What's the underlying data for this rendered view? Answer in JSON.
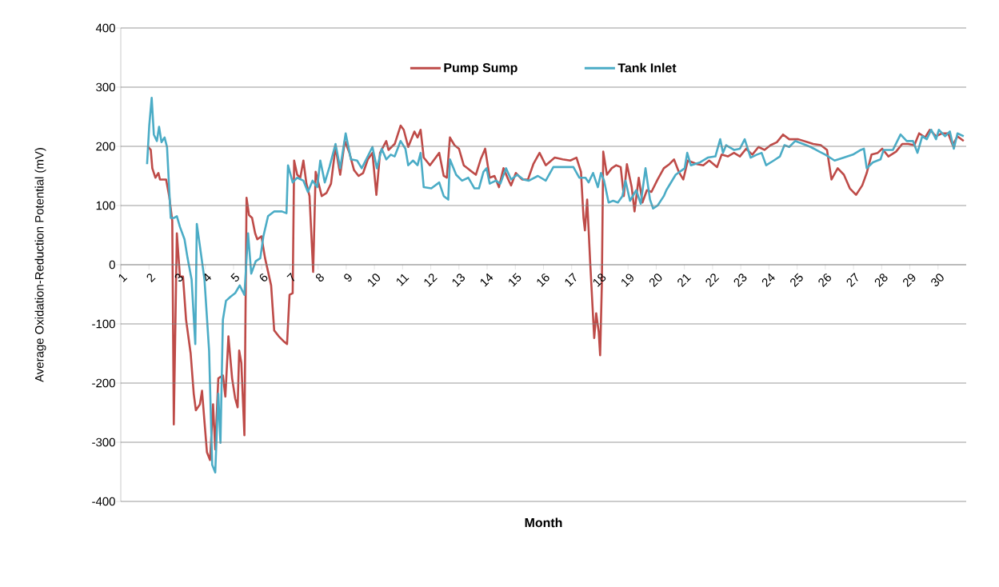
{
  "chart_data": {
    "type": "line",
    "xlabel": "Month",
    "ylabel": "Average Oxidation-Reduction Potential (mV)",
    "xlim": [
      1,
      31
    ],
    "xticks": [
      1,
      2,
      3,
      4,
      5,
      6,
      7,
      8,
      9,
      10,
      11,
      12,
      13,
      14,
      15,
      16,
      17,
      18,
      19,
      20,
      21,
      22,
      23,
      24,
      25,
      26,
      27,
      28,
      29,
      30
    ],
    "ylim": [
      -400,
      400
    ],
    "yticks": [
      -400,
      -300,
      -200,
      -100,
      0,
      100,
      200,
      300,
      400
    ],
    "grid": "y",
    "legend": "top",
    "marker": "none",
    "line_style": "solid",
    "series": [
      {
        "name": "Pump Sump",
        "color": "#be4b48",
        "x": [
          1.955,
          2.064,
          2.119,
          2.228,
          2.336,
          2.391,
          2.609,
          2.718,
          2.827,
          2.881,
          2.99,
          3.099,
          3.208,
          3.317,
          3.48,
          3.589,
          3.665,
          3.807,
          3.883,
          3.97,
          4.058,
          4.167,
          4.275,
          4.352,
          4.461,
          4.624,
          4.711,
          4.82,
          4.951,
          5.06,
          5.147,
          5.201,
          5.278,
          5.387,
          5.463,
          5.55,
          5.659,
          5.768,
          5.845,
          5.99,
          6.12,
          6.335,
          6.444,
          6.607,
          6.77,
          6.9,
          6.988,
          7.1,
          7.152,
          7.26,
          7.37,
          7.48,
          7.587,
          7.697,
          7.827,
          7.915,
          8.02,
          8.13,
          8.296,
          8.46,
          8.62,
          8.786,
          8.95,
          9.113,
          9.276,
          9.44,
          9.6,
          9.766,
          9.93,
          10.07,
          10.2,
          10.42,
          10.5,
          10.72,
          10.93,
          11.04,
          11.2,
          11.42,
          11.53,
          11.64,
          11.75,
          11.97,
          12.3,
          12.46,
          12.57,
          12.68,
          12.84,
          13.0,
          13.17,
          13.38,
          13.6,
          13.77,
          13.93,
          14.09,
          14.26,
          14.42,
          14.58,
          14.75,
          14.85,
          15.02,
          15.24,
          15.45,
          15.64,
          15.86,
          16.08,
          16.4,
          16.68,
          16.95,
          17.17,
          17.33,
          17.42,
          17.47,
          17.55,
          17.66,
          17.8,
          17.87,
          17.96,
          18.01,
          18.07,
          18.12,
          18.25,
          18.42,
          18.58,
          18.74,
          18.85,
          18.96,
          19.13,
          19.23,
          19.38,
          19.51,
          19.67,
          19.83,
          20.05,
          20.27,
          20.47,
          20.63,
          20.8,
          20.96,
          21.12,
          21.45,
          21.67,
          21.88,
          22.16,
          22.32,
          22.54,
          22.76,
          22.97,
          23.19,
          23.41,
          23.63,
          23.84,
          24.06,
          24.28,
          24.5,
          24.72,
          25.04,
          25.37,
          25.57,
          25.84,
          26.06,
          26.22,
          26.44,
          26.66,
          26.87,
          27.09,
          27.31,
          27.47,
          27.64,
          27.86,
          28.02,
          28.24,
          28.51,
          28.73,
          28.94,
          29.16,
          29.33,
          29.54,
          29.71,
          29.93,
          30.14,
          30.36,
          30.52,
          30.69,
          30.91
        ],
        "values": [
          200,
          194,
          163,
          147,
          155,
          144,
          144,
          116,
          74,
          -270,
          53,
          -20,
          -20,
          -93,
          -150,
          -218,
          -246,
          -236,
          -213,
          -265,
          -317,
          -330,
          -236,
          -312,
          -192,
          -187,
          -223,
          -121,
          -192,
          -226,
          -241,
          -145,
          -166,
          -288,
          113,
          84,
          79,
          53,
          43,
          48,
          11,
          -35,
          -111,
          -121,
          -129,
          -134,
          -51,
          -48,
          176,
          152,
          147,
          176,
          137,
          116,
          -12,
          157,
          137,
          116,
          121,
          137,
          199,
          152,
          209,
          189,
          160,
          150,
          155,
          178,
          189,
          118,
          189,
          209,
          194,
          204,
          235,
          228,
          199,
          225,
          215,
          228,
          181,
          168,
          189,
          150,
          147,
          215,
          202,
          196,
          168,
          160,
          152,
          178,
          196,
          147,
          150,
          131,
          163,
          144,
          134,
          155,
          144,
          144,
          170,
          189,
          168,
          181,
          178,
          176,
          181,
          157,
          79,
          58,
          110,
          1,
          -124,
          -82,
          -114,
          -153,
          -35,
          191,
          152,
          163,
          168,
          165,
          116,
          170,
          131,
          90,
          147,
          105,
          126,
          123,
          144,
          163,
          170,
          178,
          157,
          144,
          176,
          170,
          168,
          176,
          165,
          186,
          183,
          189,
          183,
          196,
          186,
          199,
          194,
          202,
          207,
          220,
          212,
          212,
          207,
          204,
          202,
          194,
          144,
          163,
          152,
          129,
          118,
          134,
          155,
          186,
          189,
          196,
          183,
          191,
          204,
          204,
          202,
          222,
          215,
          228,
          217,
          222,
          222,
          202,
          217,
          209
        ]
      },
      {
        "name": "Tank Inlet",
        "color": "#4bacc6",
        "x": [
          1.933,
          2.01,
          2.097,
          2.173,
          2.282,
          2.358,
          2.445,
          2.554,
          2.641,
          2.772,
          2.881,
          2.99,
          3.099,
          3.262,
          3.371,
          3.513,
          3.644,
          3.698,
          3.807,
          3.97,
          4.134,
          4.243,
          4.352,
          4.46,
          4.537,
          4.624,
          4.733,
          4.896,
          5.06,
          5.22,
          5.387,
          5.517,
          5.63,
          5.79,
          5.95,
          6.06,
          6.226,
          6.44,
          6.716,
          6.88,
          6.934,
          7.1,
          7.26,
          7.48,
          7.64,
          7.805,
          7.97,
          8.08,
          8.24,
          8.405,
          8.62,
          8.786,
          8.98,
          9.167,
          9.385,
          9.55,
          9.71,
          9.93,
          10.09,
          10.26,
          10.42,
          10.58,
          10.72,
          10.93,
          11.1,
          11.2,
          11.37,
          11.53,
          11.64,
          11.75,
          12.02,
          12.3,
          12.46,
          12.62,
          12.68,
          12.9,
          13.11,
          13.33,
          13.55,
          13.71,
          13.87,
          13.98,
          14.09,
          14.31,
          14.47,
          14.67,
          14.85,
          15.07,
          15.29,
          15.48,
          15.8,
          16.08,
          16.35,
          16.68,
          17.06,
          17.27,
          17.49,
          17.6,
          17.76,
          17.93,
          18.04,
          18.15,
          18.31,
          18.47,
          18.64,
          18.8,
          18.91,
          19.07,
          19.29,
          19.45,
          19.62,
          19.78,
          19.89,
          20.05,
          20.27,
          20.36,
          20.69,
          21.01,
          21.1,
          21.23,
          21.56,
          21.83,
          22.1,
          22.27,
          22.37,
          22.48,
          22.76,
          22.97,
          23.14,
          23.35,
          23.57,
          23.74,
          23.9,
          24.17,
          24.39,
          24.55,
          24.72,
          24.93,
          25.21,
          25.48,
          25.79,
          26.0,
          26.33,
          26.66,
          26.98,
          27.26,
          27.37,
          27.47,
          27.69,
          27.96,
          28.07,
          28.4,
          28.67,
          28.89,
          29.11,
          29.27,
          29.44,
          29.6,
          29.76,
          29.93,
          30.03,
          30.25,
          30.42,
          30.56,
          30.69,
          30.91
        ],
        "values": [
          170,
          235,
          282,
          220,
          209,
          233,
          207,
          215,
          199,
          79,
          79,
          82,
          64,
          43,
          11,
          -25,
          -134,
          69,
          32,
          -25,
          -145,
          -338,
          -351,
          -218,
          -301,
          -93,
          -61,
          -54,
          -48,
          -35,
          -51,
          53,
          -15,
          6,
          11,
          48,
          82,
          90,
          90,
          87,
          168,
          139,
          147,
          142,
          123,
          142,
          131,
          176,
          139,
          165,
          204,
          163,
          222,
          178,
          176,
          163,
          178,
          199,
          163,
          196,
          178,
          186,
          183,
          209,
          196,
          168,
          176,
          168,
          189,
          131,
          129,
          139,
          116,
          110,
          178,
          152,
          142,
          147,
          129,
          129,
          157,
          163,
          137,
          142,
          137,
          163,
          144,
          152,
          144,
          142,
          150,
          142,
          165,
          165,
          165,
          147,
          147,
          139,
          155,
          131,
          155,
          142,
          105,
          108,
          105,
          116,
          142,
          108,
          126,
          103,
          163,
          110,
          95,
          100,
          116,
          126,
          152,
          163,
          189,
          168,
          173,
          181,
          183,
          212,
          189,
          202,
          194,
          196,
          212,
          181,
          186,
          189,
          168,
          176,
          183,
          202,
          199,
          209,
          204,
          199,
          191,
          186,
          176,
          181,
          186,
          194,
          196,
          163,
          173,
          178,
          194,
          194,
          220,
          209,
          209,
          189,
          217,
          212,
          228,
          212,
          228,
          217,
          225,
          196,
          222,
          217
        ]
      }
    ]
  }
}
